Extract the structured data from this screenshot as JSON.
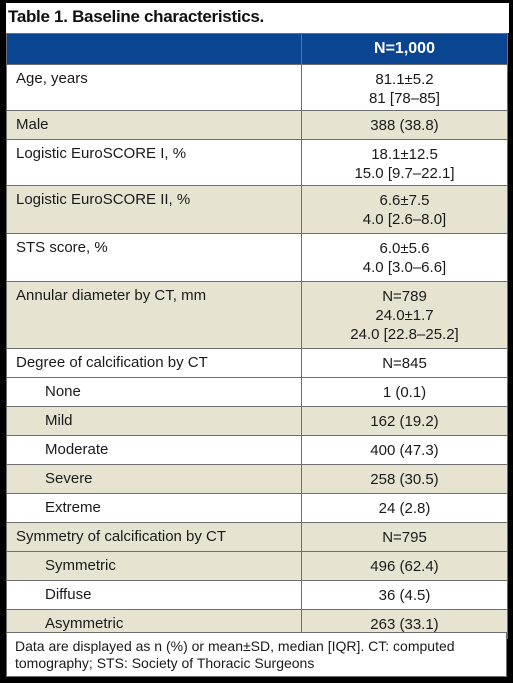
{
  "title": {
    "label": "Table 1.",
    "text": "Baseline characteristics."
  },
  "header": {
    "col1": "",
    "col2": "N=1,000"
  },
  "rows": [
    {
      "label": "Age, years",
      "values": [
        "81.1±5.2",
        "81 [78–85]"
      ]
    },
    {
      "label": "Male",
      "values": [
        "388 (38.8)"
      ]
    },
    {
      "label": "Logistic EuroSCORE I, %",
      "values": [
        "18.1±12.5",
        "15.0 [9.7–22.1]"
      ]
    },
    {
      "label": "Logistic EuroSCORE II, %",
      "values": [
        "6.6±7.5",
        "4.0 [2.6–8.0]"
      ]
    },
    {
      "label": "STS score, %",
      "values": [
        "6.0±5.6",
        "4.0 [3.0–6.6]"
      ]
    },
    {
      "label": "Annular diameter by CT, mm",
      "values": [
        "N=789",
        "24.0±1.7",
        "24.0 [22.8–25.2]"
      ]
    },
    {
      "label": "Degree of calcification by CT",
      "values": [
        "N=845"
      ]
    },
    {
      "label": "None",
      "values": [
        "1 (0.1)"
      ]
    },
    {
      "label": "Mild",
      "values": [
        "162 (19.2)"
      ]
    },
    {
      "label": "Moderate",
      "values": [
        "400 (47.3)"
      ]
    },
    {
      "label": "Severe",
      "values": [
        "258 (30.5)"
      ]
    },
    {
      "label": "Extreme",
      "values": [
        "24 (2.8)"
      ]
    },
    {
      "label": "Symmetry of calcification by CT",
      "values": [
        "N=795"
      ]
    },
    {
      "label": "Symmetric",
      "values": [
        "496 (62.4)"
      ]
    },
    {
      "label": "Diffuse",
      "values": [
        "36 (4.5)"
      ]
    },
    {
      "label": "Asymmetric",
      "values": [
        "263 (33.1)"
      ]
    }
  ],
  "footnote": "Data are displayed as n (%) or mean±SD, median [IQR]. CT: computed tomography; STS: Society of Thoracic Surgeons",
  "colors": {
    "header_bg": "#0a4592",
    "shade_bg": "#e6e3d1",
    "frame": "#000000"
  }
}
